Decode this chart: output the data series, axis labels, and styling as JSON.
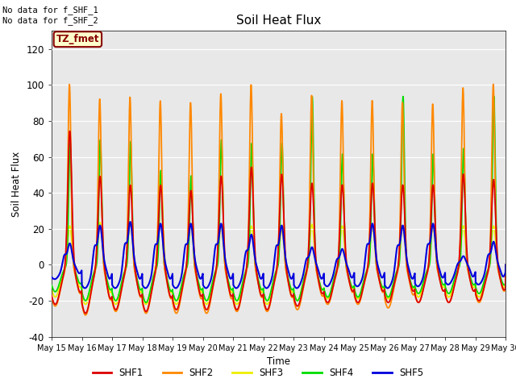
{
  "title": "Soil Heat Flux",
  "ylabel": "Soil Heat Flux",
  "xlabel": "Time",
  "background_color": "#e8e8e8",
  "fig_background": "#ffffff",
  "annotation_text": "No data for f_SHF_1\nNo data for f_SHF_2",
  "legend_label": "TZ_fmet",
  "series_colors": {
    "SHF1": "#dd0000",
    "SHF2": "#ff8800",
    "SHF3": "#eeee00",
    "SHF4": "#00dd00",
    "SHF5": "#0000dd"
  },
  "xtick_labels": [
    "May 15",
    "May 16",
    "May 17",
    "May 18",
    "May 19",
    "May 20",
    "May 21",
    "May 22",
    "May 23",
    "May 24",
    "May 25",
    "May 26",
    "May 27",
    "May 28",
    "May 29",
    "May 30"
  ],
  "ytick_labels": [
    -40,
    -20,
    0,
    20,
    40,
    60,
    80,
    100,
    120
  ],
  "num_days": 15,
  "n_points_per_day": 144
}
